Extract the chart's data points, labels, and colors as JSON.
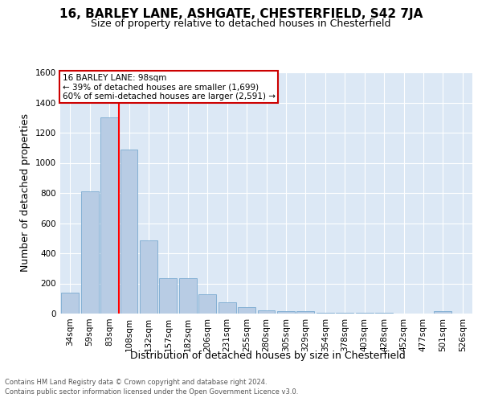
{
  "title1": "16, BARLEY LANE, ASHGATE, CHESTERFIELD, S42 7JA",
  "title2": "Size of property relative to detached houses in Chesterfield",
  "xlabel": "Distribution of detached houses by size in Chesterfield",
  "ylabel": "Number of detached properties",
  "categories": [
    "34sqm",
    "59sqm",
    "83sqm",
    "108sqm",
    "132sqm",
    "157sqm",
    "182sqm",
    "206sqm",
    "231sqm",
    "255sqm",
    "280sqm",
    "305sqm",
    "329sqm",
    "354sqm",
    "378sqm",
    "403sqm",
    "428sqm",
    "452sqm",
    "477sqm",
    "501sqm",
    "526sqm"
  ],
  "values": [
    140,
    810,
    1300,
    1090,
    485,
    235,
    235,
    130,
    75,
    45,
    22,
    15,
    15,
    5,
    5,
    5,
    5,
    0,
    0,
    15,
    0
  ],
  "bar_color": "#b8cce4",
  "bar_edge_color": "#7aaad0",
  "red_line_x": 2.5,
  "annotation_line1": "16 BARLEY LANE: 98sqm",
  "annotation_line2": "← 39% of detached houses are smaller (1,699)",
  "annotation_line3": "60% of semi-detached houses are larger (2,591) →",
  "annotation_box_color": "#cc0000",
  "ylim": [
    0,
    1600
  ],
  "yticks": [
    0,
    200,
    400,
    600,
    800,
    1000,
    1200,
    1400,
    1600
  ],
  "background_color": "#dce8f5",
  "footer_line1": "Contains HM Land Registry data © Crown copyright and database right 2024.",
  "footer_line2": "Contains public sector information licensed under the Open Government Licence v3.0.",
  "title1_fontsize": 11,
  "title2_fontsize": 9,
  "xlabel_fontsize": 9,
  "ylabel_fontsize": 9,
  "annot_fontsize": 7.5,
  "tick_fontsize": 7.5,
  "footer_fontsize": 6.0
}
